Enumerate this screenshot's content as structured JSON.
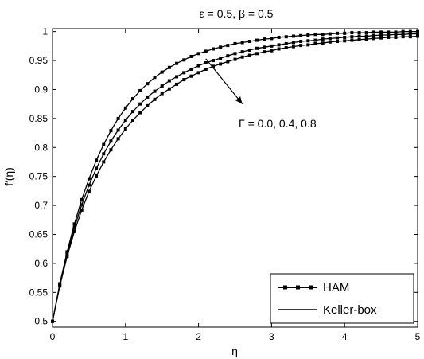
{
  "chart_data": {
    "type": "line",
    "title": "ε = 0.5,    β = 0.5",
    "xlabel": "η",
    "ylabel": "f′(η)",
    "xlim": [
      0,
      5
    ],
    "ylim": [
      0.49,
      1.005
    ],
    "grid": false,
    "xticks": [
      0,
      1,
      2,
      3,
      4,
      5
    ],
    "yticks": [
      0.5,
      0.55,
      0.6,
      0.65,
      0.7,
      0.75,
      0.8,
      0.85,
      0.9,
      0.95,
      1
    ],
    "legend": {
      "position": "bottom-right",
      "entries": [
        {
          "label": "HAM",
          "style": "line-square-markers"
        },
        {
          "label": "Keller-box",
          "style": "solid-line"
        }
      ]
    },
    "annotation": {
      "text": "Γ = 0.0, 0.4, 0.8",
      "arrow_from": [
        2.1,
        0.953
      ],
      "arrow_to": [
        2.6,
        0.875
      ]
    },
    "series": [
      {
        "name": "Γ = 0.0",
        "x": [
          0,
          0.1,
          0.2,
          0.3,
          0.4,
          0.5,
          0.6,
          0.7,
          0.8,
          0.9,
          1.0,
          1.1,
          1.2,
          1.3,
          1.4,
          1.5,
          1.6,
          1.7,
          1.8,
          1.9,
          2.0,
          2.1,
          2.2,
          2.3,
          2.4,
          2.5,
          2.6,
          2.7,
          2.8,
          2.9,
          3.0,
          3.1,
          3.2,
          3.3,
          3.4,
          3.5,
          3.6,
          3.7,
          3.8,
          3.9,
          4.0,
          4.1,
          4.2,
          4.3,
          4.4,
          4.5,
          4.6,
          4.7,
          4.8,
          4.9,
          5.0
        ],
        "y": [
          0.5,
          0.565,
          0.62,
          0.668,
          0.71,
          0.746,
          0.778,
          0.805,
          0.829,
          0.85,
          0.868,
          0.884,
          0.898,
          0.91,
          0.921,
          0.93,
          0.938,
          0.945,
          0.951,
          0.957,
          0.962,
          0.966,
          0.97,
          0.973,
          0.976,
          0.979,
          0.981,
          0.983,
          0.985,
          0.987,
          0.988,
          0.99,
          0.991,
          0.992,
          0.993,
          0.994,
          0.995,
          0.995,
          0.996,
          0.997,
          0.997,
          0.998,
          0.998,
          0.998,
          0.999,
          0.999,
          0.999,
          0.999,
          1.0,
          1.0,
          1.0
        ]
      },
      {
        "name": "Γ = 0.4",
        "x": [
          0,
          0.1,
          0.2,
          0.3,
          0.4,
          0.5,
          0.6,
          0.7,
          0.8,
          0.9,
          1.0,
          1.1,
          1.2,
          1.3,
          1.4,
          1.5,
          1.6,
          1.7,
          1.8,
          1.9,
          2.0,
          2.1,
          2.2,
          2.3,
          2.4,
          2.5,
          2.6,
          2.7,
          2.8,
          2.9,
          3.0,
          3.1,
          3.2,
          3.3,
          3.4,
          3.5,
          3.6,
          3.7,
          3.8,
          3.9,
          4.0,
          4.1,
          4.2,
          4.3,
          4.4,
          4.5,
          4.6,
          4.7,
          4.8,
          4.9,
          5.0
        ],
        "y": [
          0.5,
          0.563,
          0.616,
          0.662,
          0.701,
          0.735,
          0.764,
          0.789,
          0.811,
          0.83,
          0.847,
          0.862,
          0.875,
          0.887,
          0.897,
          0.906,
          0.915,
          0.922,
          0.929,
          0.935,
          0.941,
          0.946,
          0.95,
          0.954,
          0.958,
          0.962,
          0.965,
          0.968,
          0.971,
          0.973,
          0.975,
          0.977,
          0.979,
          0.981,
          0.983,
          0.984,
          0.985,
          0.987,
          0.988,
          0.989,
          0.99,
          0.991,
          0.992,
          0.992,
          0.993,
          0.994,
          0.994,
          0.995,
          0.995,
          0.996,
          0.996
        ]
      },
      {
        "name": "Γ = 0.8",
        "x": [
          0,
          0.1,
          0.2,
          0.3,
          0.4,
          0.5,
          0.6,
          0.7,
          0.8,
          0.9,
          1.0,
          1.1,
          1.2,
          1.3,
          1.4,
          1.5,
          1.6,
          1.7,
          1.8,
          1.9,
          2.0,
          2.1,
          2.2,
          2.3,
          2.4,
          2.5,
          2.6,
          2.7,
          2.8,
          2.9,
          3.0,
          3.1,
          3.2,
          3.3,
          3.4,
          3.5,
          3.6,
          3.7,
          3.8,
          3.9,
          4.0,
          4.1,
          4.2,
          4.3,
          4.4,
          4.5,
          4.6,
          4.7,
          4.8,
          4.9,
          5.0
        ],
        "y": [
          0.5,
          0.561,
          0.612,
          0.655,
          0.692,
          0.724,
          0.751,
          0.775,
          0.796,
          0.815,
          0.832,
          0.847,
          0.86,
          0.872,
          0.883,
          0.893,
          0.901,
          0.909,
          0.917,
          0.923,
          0.929,
          0.935,
          0.94,
          0.944,
          0.948,
          0.952,
          0.956,
          0.959,
          0.962,
          0.965,
          0.967,
          0.97,
          0.972,
          0.974,
          0.976,
          0.977,
          0.979,
          0.98,
          0.982,
          0.983,
          0.984,
          0.985,
          0.986,
          0.987,
          0.988,
          0.989,
          0.99,
          0.99,
          0.991,
          0.991,
          0.992
        ]
      }
    ]
  }
}
